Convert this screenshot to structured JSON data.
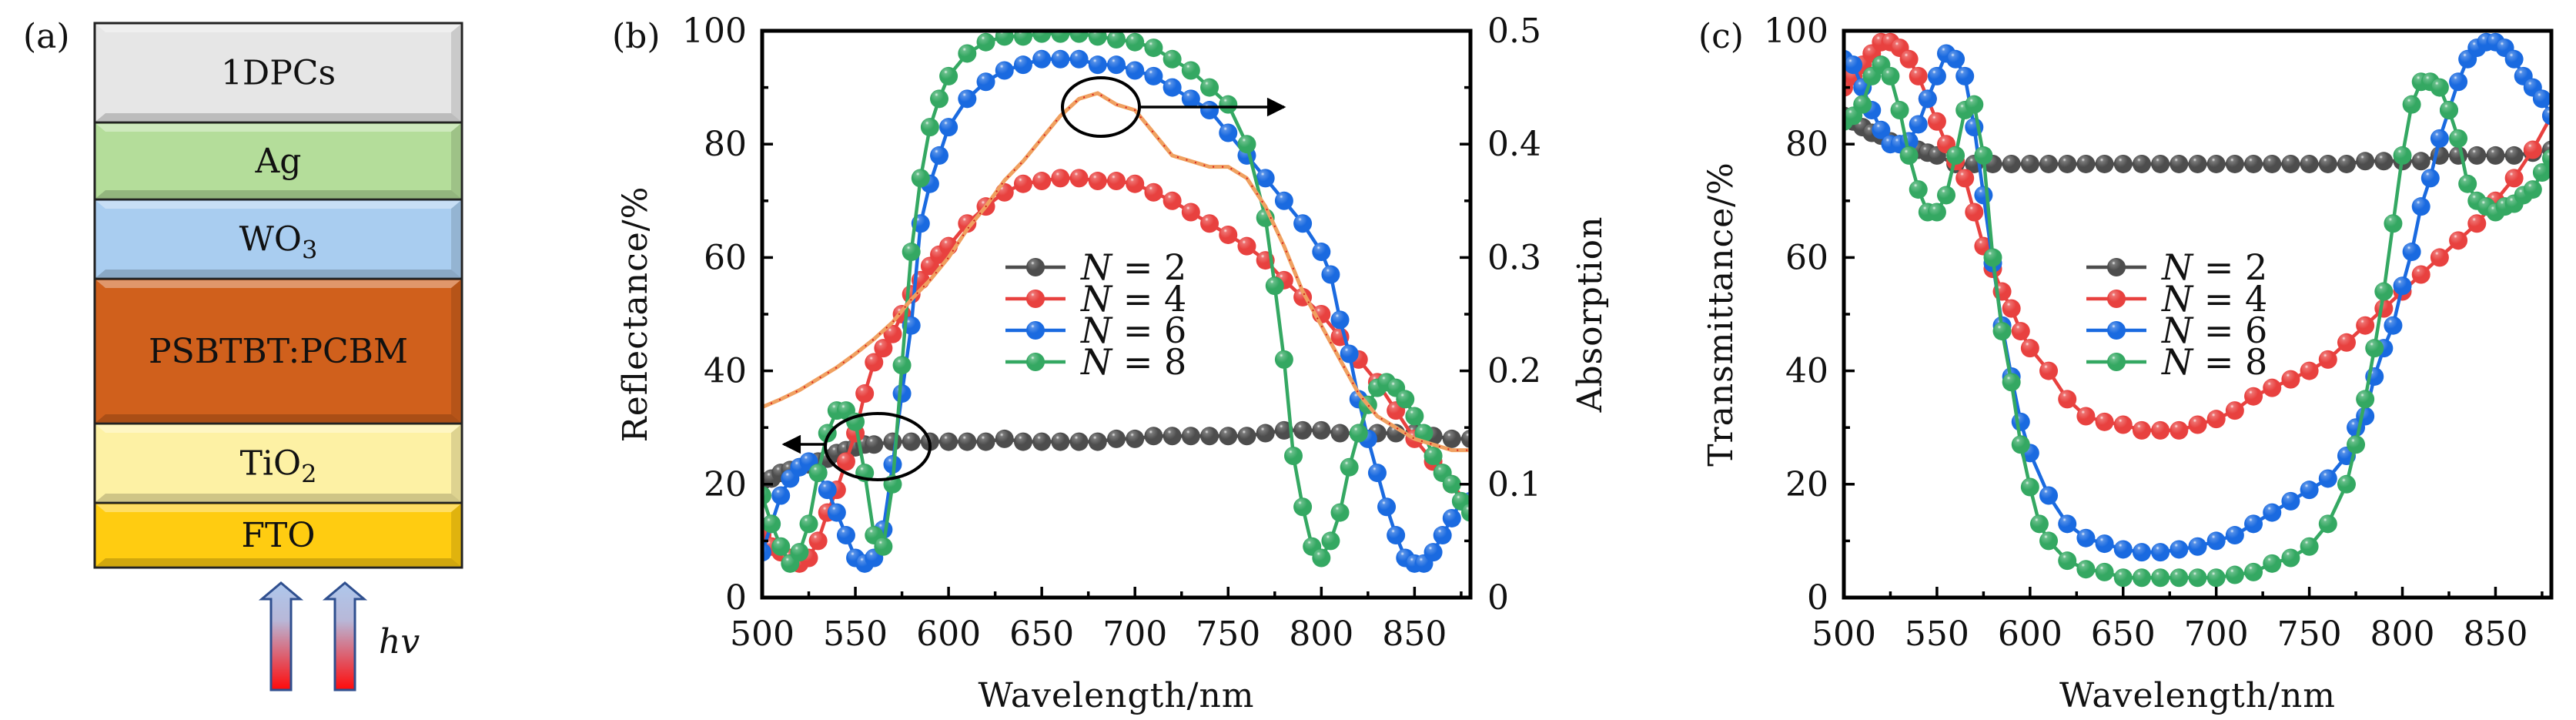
{
  "panel_a": {
    "label": "(a)",
    "layers": [
      {
        "name": "1DPCs",
        "sub": "",
        "color": "#e6e6e6"
      },
      {
        "name": "Ag",
        "sub": "",
        "color": "#b4dd9a"
      },
      {
        "name": "WO",
        "sub": "3",
        "color": "#a9cdf0"
      },
      {
        "name": "PSBTBT:PCBM",
        "sub": "",
        "color": "#d0601c"
      },
      {
        "name": "TiO",
        "sub": "2",
        "color": "#fdf1a4"
      },
      {
        "name": "FTO",
        "sub": "",
        "color": "#ffcc11"
      }
    ],
    "light_label": "hv"
  },
  "chart_data": [
    {
      "panel": "(b)",
      "type": "line",
      "xlabel": "Wavelength/nm",
      "ylabel": "Reflectance/%",
      "y2label": "Absorption",
      "xlim": [
        500,
        880
      ],
      "ylim": [
        0,
        100
      ],
      "y2lim": [
        0,
        0.5
      ],
      "xticks": [
        500,
        550,
        600,
        650,
        700,
        750,
        800,
        850
      ],
      "yticks": [
        0,
        20,
        40,
        60,
        80,
        100
      ],
      "y2ticks": [
        "0",
        "0.1",
        "0.2",
        "0.3",
        "0.4",
        "0.5"
      ],
      "legend": {
        "position": "center",
        "entries": [
          "N = 2",
          "N = 4",
          "N = 6",
          "N = 8"
        ]
      },
      "annotations": [
        "ellipse on N=2 curve near 560 nm with arrow pointing left to Reflectance axis",
        "ellipse on absorption curve near 680 nm with arrow pointing right to Absorption axis"
      ],
      "series": [
        {
          "name": "N = 2",
          "color": "#4d4d4d",
          "axis": "left",
          "x": [
            500,
            505,
            510,
            515,
            520,
            525,
            530,
            535,
            540,
            545,
            550,
            555,
            560,
            570,
            580,
            590,
            600,
            610,
            620,
            630,
            640,
            650,
            660,
            670,
            680,
            690,
            700,
            710,
            720,
            730,
            740,
            750,
            760,
            770,
            780,
            790,
            800,
            810,
            820,
            830,
            840,
            850,
            860,
            870,
            880
          ],
          "y": [
            20.5,
            21,
            22,
            22.5,
            23,
            23.5,
            24,
            24.5,
            25.5,
            26,
            26.5,
            27,
            27,
            27.5,
            27.5,
            27.5,
            27.5,
            27.5,
            27.5,
            28,
            27.5,
            27.5,
            27.5,
            27.5,
            27.5,
            28,
            28,
            28.5,
            28.5,
            28.5,
            28.5,
            28.5,
            28.5,
            29,
            29.5,
            29.5,
            29.5,
            29,
            29,
            29,
            29,
            29,
            28.5,
            28,
            28
          ]
        },
        {
          "name": "N = 4",
          "color": "#e8413f",
          "axis": "left",
          "x": [
            500,
            505,
            510,
            515,
            520,
            525,
            530,
            535,
            540,
            545,
            550,
            555,
            560,
            565,
            570,
            575,
            580,
            585,
            590,
            595,
            600,
            610,
            620,
            630,
            640,
            650,
            660,
            670,
            680,
            690,
            700,
            710,
            720,
            730,
            740,
            750,
            760,
            770,
            780,
            790,
            800,
            810,
            820,
            830,
            840,
            850,
            860,
            870,
            880
          ],
          "y": [
            11,
            9,
            8,
            7,
            6,
            7,
            10,
            15,
            19,
            24,
            29,
            36,
            41.5,
            44,
            46.5,
            50,
            53.5,
            56,
            58.5,
            60.5,
            62,
            66,
            69,
            71.5,
            73,
            73.5,
            74,
            74,
            73.5,
            73.5,
            73,
            71.5,
            70,
            68,
            66,
            64,
            62,
            59.5,
            56,
            53,
            50,
            46,
            42,
            38,
            33,
            28,
            24,
            20,
            16
          ]
        },
        {
          "name": "N = 6",
          "color": "#1a6ae0",
          "axis": "left",
          "x": [
            500,
            505,
            510,
            515,
            520,
            525,
            530,
            535,
            540,
            545,
            550,
            555,
            560,
            565,
            570,
            575,
            580,
            585,
            590,
            595,
            600,
            610,
            620,
            630,
            640,
            650,
            660,
            670,
            680,
            690,
            700,
            710,
            720,
            730,
            740,
            750,
            760,
            770,
            780,
            790,
            800,
            805,
            810,
            815,
            820,
            825,
            830,
            835,
            840,
            845,
            850,
            855,
            860,
            865,
            870,
            875,
            880
          ],
          "y": [
            8,
            13,
            18,
            21,
            23,
            24,
            22,
            19,
            15,
            11,
            7,
            6,
            7,
            12,
            23.5,
            36,
            48,
            66,
            73,
            78,
            83,
            88,
            91,
            93,
            94,
            95,
            95,
            95,
            94,
            94,
            93,
            92,
            90,
            88,
            86,
            82,
            78,
            74,
            70,
            66,
            61,
            57,
            49,
            43,
            35,
            28,
            22,
            16,
            11,
            7,
            6,
            6,
            8,
            11,
            14,
            17,
            17
          ]
        },
        {
          "name": "N = 8",
          "color": "#34a862",
          "axis": "left",
          "x": [
            500,
            505,
            510,
            515,
            520,
            525,
            530,
            535,
            540,
            545,
            550,
            555,
            560,
            565,
            570,
            575,
            580,
            585,
            590,
            595,
            600,
            610,
            620,
            630,
            640,
            650,
            660,
            670,
            680,
            690,
            700,
            710,
            720,
            730,
            740,
            750,
            760,
            770,
            775,
            780,
            785,
            790,
            795,
            800,
            805,
            810,
            815,
            820,
            825,
            830,
            835,
            840,
            845,
            850,
            855,
            860,
            865,
            870,
            875,
            880
          ],
          "y": [
            18,
            13,
            9,
            6,
            8,
            13,
            22,
            29,
            33,
            33,
            31,
            22,
            11,
            9,
            20,
            41,
            61,
            74,
            83,
            88,
            92,
            96,
            98,
            99,
            99,
            99.5,
            99.5,
            99.5,
            99,
            98.5,
            98,
            97,
            95,
            93,
            90,
            87,
            80,
            67,
            55,
            42,
            25,
            16,
            9,
            7,
            10,
            15,
            23,
            29,
            34,
            37,
            38,
            37,
            35,
            32,
            29,
            25,
            22,
            20,
            17,
            15
          ]
        },
        {
          "name": "Absorption",
          "color": "#f0a060",
          "axis": "right",
          "x": [
            500,
            510,
            520,
            530,
            540,
            550,
            560,
            570,
            580,
            590,
            600,
            610,
            620,
            630,
            640,
            650,
            660,
            670,
            680,
            690,
            700,
            710,
            720,
            730,
            740,
            750,
            760,
            770,
            780,
            790,
            800,
            810,
            820,
            830,
            840,
            850,
            860,
            870,
            880
          ],
          "y": [
            0.168,
            0.175,
            0.183,
            0.193,
            0.203,
            0.215,
            0.228,
            0.243,
            0.263,
            0.28,
            0.3,
            0.325,
            0.345,
            0.368,
            0.385,
            0.405,
            0.425,
            0.44,
            0.445,
            0.435,
            0.43,
            0.41,
            0.39,
            0.385,
            0.38,
            0.38,
            0.37,
            0.345,
            0.31,
            0.27,
            0.24,
            0.21,
            0.18,
            0.16,
            0.15,
            0.14,
            0.135,
            0.13,
            0.13
          ]
        }
      ]
    },
    {
      "panel": "(c)",
      "type": "line",
      "xlabel": "Wavelength/nm",
      "ylabel": "Transmittance/%",
      "xlim": [
        500,
        880
      ],
      "ylim": [
        0,
        100
      ],
      "xticks": [
        500,
        550,
        600,
        650,
        700,
        750,
        800,
        850
      ],
      "yticks": [
        0,
        20,
        40,
        60,
        80,
        100
      ],
      "legend": {
        "position": "center",
        "entries": [
          "N = 2",
          "N = 4",
          "N = 6",
          "N = 8"
        ]
      },
      "series": [
        {
          "name": "N = 2",
          "color": "#4d4d4d",
          "x": [
            500,
            505,
            510,
            515,
            520,
            525,
            530,
            535,
            540,
            545,
            550,
            560,
            570,
            580,
            590,
            600,
            610,
            620,
            630,
            640,
            650,
            660,
            670,
            680,
            690,
            700,
            710,
            720,
            730,
            740,
            750,
            760,
            770,
            780,
            790,
            800,
            810,
            820,
            830,
            840,
            850,
            860,
            870,
            880
          ],
          "y": [
            85,
            84,
            83,
            82,
            81.5,
            80.5,
            80,
            79.5,
            79,
            78.5,
            78,
            76.5,
            76.5,
            76.5,
            76.5,
            76.5,
            76.5,
            76.5,
            76.5,
            76.5,
            76.5,
            76.5,
            76.5,
            76.5,
            76.5,
            76.5,
            76.5,
            76.5,
            76.5,
            76.5,
            76.5,
            76.5,
            76.5,
            77,
            77,
            77,
            77,
            78,
            78,
            78,
            78,
            78,
            78.5,
            79
          ]
        },
        {
          "name": "N = 4",
          "color": "#e8413f",
          "x": [
            500,
            505,
            510,
            515,
            520,
            525,
            530,
            535,
            540,
            545,
            550,
            555,
            560,
            565,
            570,
            575,
            580,
            585,
            590,
            595,
            600,
            610,
            620,
            630,
            640,
            650,
            660,
            670,
            680,
            690,
            700,
            710,
            720,
            730,
            740,
            750,
            760,
            770,
            780,
            790,
            800,
            810,
            820,
            830,
            840,
            850,
            860,
            870,
            880
          ],
          "y": [
            90,
            92,
            94,
            96,
            98,
            98,
            97,
            95,
            92,
            88,
            84,
            80,
            77,
            74,
            68,
            62,
            58,
            54,
            51,
            47,
            44,
            40,
            35,
            32,
            31,
            30.5,
            29.5,
            29.5,
            29.5,
            30.5,
            31.5,
            33,
            35.5,
            37,
            38.5,
            40,
            42,
            45,
            48,
            51,
            54,
            57,
            60,
            63,
            66,
            70,
            74,
            79,
            85
          ]
        },
        {
          "name": "N = 6",
          "color": "#1a6ae0",
          "x": [
            500,
            505,
            510,
            515,
            520,
            525,
            530,
            535,
            540,
            545,
            550,
            555,
            560,
            565,
            570,
            575,
            580,
            585,
            590,
            595,
            600,
            610,
            620,
            630,
            640,
            650,
            660,
            670,
            680,
            690,
            700,
            710,
            720,
            730,
            740,
            750,
            760,
            770,
            775,
            780,
            785,
            790,
            795,
            800,
            805,
            810,
            815,
            820,
            825,
            830,
            835,
            840,
            845,
            850,
            855,
            860,
            865,
            870,
            875,
            880
          ],
          "y": [
            95,
            94,
            90,
            86,
            82.5,
            80,
            80,
            80.5,
            83.5,
            88,
            92,
            96,
            95,
            92,
            83,
            71,
            59,
            48,
            39,
            31,
            25.5,
            18,
            13,
            10.5,
            9.5,
            8.5,
            8,
            8,
            8.5,
            9,
            10,
            11,
            13,
            15,
            17,
            19,
            21,
            25,
            30,
            32,
            39,
            44,
            48,
            55,
            61,
            69,
            74,
            81,
            86,
            91,
            95,
            97,
            98,
            98,
            97,
            95,
            92,
            90,
            88,
            85
          ]
        },
        {
          "name": "N = 8",
          "color": "#34a862",
          "x": [
            500,
            505,
            510,
            515,
            520,
            525,
            530,
            535,
            540,
            545,
            550,
            555,
            560,
            565,
            570,
            575,
            580,
            585,
            590,
            595,
            600,
            605,
            610,
            620,
            630,
            640,
            650,
            660,
            670,
            680,
            690,
            700,
            710,
            720,
            730,
            740,
            750,
            760,
            770,
            775,
            780,
            785,
            790,
            795,
            800,
            805,
            810,
            815,
            820,
            825,
            830,
            835,
            840,
            845,
            850,
            855,
            860,
            865,
            870,
            875,
            880
          ],
          "y": [
            84,
            85,
            87,
            92,
            94,
            92,
            86,
            78,
            72,
            68,
            68,
            71,
            78,
            86,
            87,
            78,
            60,
            47,
            38,
            27,
            19.5,
            13,
            10,
            6.5,
            5,
            4.5,
            3.5,
            3.5,
            3.5,
            3.5,
            3.5,
            3.5,
            4,
            4.5,
            6,
            7,
            9,
            13,
            20,
            27,
            35,
            44,
            54,
            66,
            78,
            87,
            91,
            91,
            90,
            86,
            81,
            73,
            70,
            69,
            68,
            69,
            69.5,
            71,
            72,
            75,
            77.5
          ]
        }
      ]
    }
  ]
}
